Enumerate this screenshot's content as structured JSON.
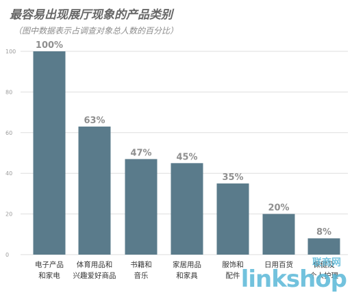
{
  "header": {
    "title": "最容易出现展厅现象的产品类别",
    "subtitle": "（图中数据表示占调查对象总人数的百分比）"
  },
  "watermark": {
    "top": "联商网",
    "main": "linkshop"
  },
  "colors": {
    "bar": "#5a7b8b",
    "grid": "#dedede",
    "data_label": "#8f8f8f"
  },
  "chart_data": {
    "type": "bar",
    "title": "最容易出现展厅现象的产品类别",
    "subtitle": "（图中数据表示占调查对象总人数的百分比）",
    "categories": [
      [
        "电子产品",
        "和家电"
      ],
      [
        "体育用品和",
        "兴趣爱好商品"
      ],
      [
        "书籍和",
        "音乐"
      ],
      [
        "家居用品",
        "和家具"
      ],
      [
        "服饰和",
        "配件"
      ],
      [
        "日用百货"
      ],
      [
        "保健及",
        "个人护理"
      ]
    ],
    "values": [
      100,
      63,
      47,
      45,
      35,
      20,
      8
    ],
    "data_labels": [
      "100%",
      "63%",
      "47%",
      "45%",
      "35%",
      "20%",
      "8%"
    ],
    "yticks": [
      0,
      20,
      40,
      60,
      80,
      100
    ],
    "ylim": [
      0,
      100
    ],
    "xlabel": "",
    "ylabel": "",
    "grid": true
  }
}
